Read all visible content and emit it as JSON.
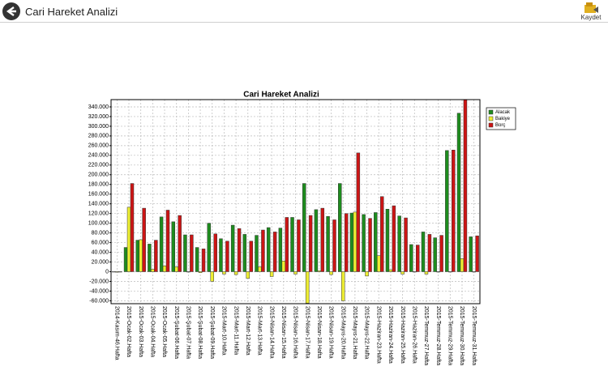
{
  "header": {
    "title": "Cari Hareket Analizi",
    "save_label": "Kaydet"
  },
  "chart_data": {
    "type": "bar",
    "title": "Cari Hareket Analizi",
    "categories": [
      "2014-Kasım-46.Hafta",
      "2015-Ocak-02.Hafta",
      "2015-Ocak-03.Hafta",
      "2015-Ocak-04.Hafta",
      "2015-Ocak-05.Hafta",
      "2015-Şubat-06.Hafta",
      "2015-Şubat-07.Hafta",
      "2015-Şubat-08.Hafta",
      "2015-Şubat-09.Hafta",
      "2015-Mart-10.Hafta",
      "2015-Mart-11.Hafta",
      "2015-Mart-12.Hafta",
      "2015-Mart-13.Hafta",
      "2015-Nisan-14.Hafta",
      "2015-Nisan-15.Hafta",
      "2015-Nisan-16.Hafta",
      "2015-Nisan-17.Hafta",
      "2015-Nisan-18.Hafta",
      "2015-Nisan-19.Hafta",
      "2015-Mayıs-20.Hafta",
      "2015-Mayıs-21.Hafta",
      "2015-Mayıs-22.Hafta",
      "2015-Haziran-23.Hafta",
      "2015-Haziran-24.Hafta",
      "2015-Haziran-25.Hafta",
      "2015-Haziran-26.Hafta",
      "2015-Temmuz-27.Hafta",
      "2015-Temmuz-28.Hafta",
      "2015-Temmuz-29.Hafta",
      "2015-Temmuz-30.Hafta",
      "2015-Temmuz-31.Hafta"
    ],
    "series": [
      {
        "name": "Alacak",
        "color": "#1e8c1e",
        "values": [
          0,
          50000,
          65000,
          57000,
          113000,
          103000,
          76000,
          50000,
          100000,
          68000,
          96000,
          77000,
          75000,
          91000,
          90000,
          112000,
          182000,
          128000,
          114000,
          182000,
          121000,
          118000,
          122000,
          129000,
          115000,
          56000,
          82000,
          70000,
          250000,
          327000,
          72000
        ]
      },
      {
        "name": "Bakiye",
        "color": "#eeee33",
        "values": [
          -1000,
          133000,
          66000,
          5000,
          12000,
          10000,
          0,
          -2000,
          -20000,
          -5000,
          -6000,
          -14000,
          10000,
          -10000,
          22000,
          -5000,
          -65000,
          2000,
          -6000,
          -60000,
          123000,
          -9000,
          33000,
          4000,
          -5000,
          0,
          -5000,
          0,
          0,
          27000,
          0
        ]
      },
      {
        "name": "Borç",
        "color": "#cc1515",
        "values": [
          0,
          182000,
          131000,
          65000,
          127000,
          116000,
          76000,
          47000,
          78000,
          63000,
          89000,
          63000,
          86000,
          82000,
          112000,
          107000,
          116000,
          131000,
          107000,
          120000,
          245000,
          110000,
          155000,
          136000,
          111000,
          55000,
          77000,
          75000,
          251000,
          355000,
          74000
        ]
      }
    ],
    "ylim": [
      -66000,
      355000
    ],
    "yticks": [
      {
        "value": -60000,
        "label": "-60.000"
      },
      {
        "value": -40000,
        "label": "-40.000"
      },
      {
        "value": -20000,
        "label": "-20.000"
      },
      0,
      {
        "value": 20000,
        "label": "20.000"
      },
      {
        "value": 40000,
        "label": "40.000"
      },
      {
        "value": 60000,
        "label": "60.000"
      },
      {
        "value": 80000,
        "label": "80.000"
      },
      {
        "value": 100000,
        "label": "100.000"
      },
      {
        "value": 120000,
        "label": "120.000"
      },
      {
        "value": 140000,
        "label": "140.000"
      },
      {
        "value": 160000,
        "label": "160.000"
      },
      {
        "value": 180000,
        "label": "180.000"
      },
      {
        "value": 200000,
        "label": "200.000"
      },
      {
        "value": 220000,
        "label": "220.000"
      },
      {
        "value": 240000,
        "label": "240.000"
      },
      {
        "value": 260000,
        "label": "260.000"
      },
      {
        "value": 280000,
        "label": "280.000"
      },
      {
        "value": 300000,
        "label": "300.000"
      },
      {
        "value": 320000,
        "label": "320.000"
      },
      {
        "value": 340000,
        "label": "340.000"
      }
    ],
    "grid": true,
    "legend": "right"
  }
}
